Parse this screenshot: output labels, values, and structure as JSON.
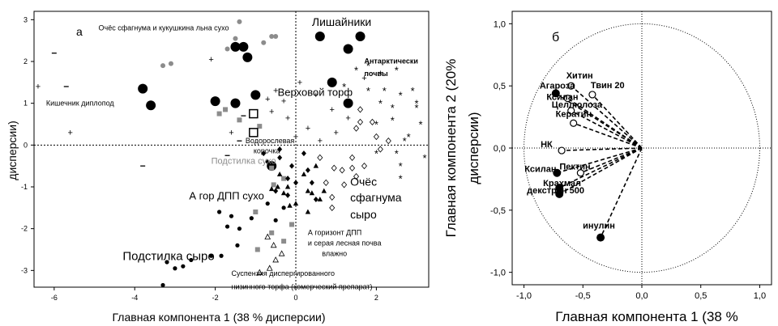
{
  "chart_data": [
    {
      "type": "scatter",
      "panel_label": "а",
      "xlabel": "Главная компонента 1 (38 % дисперсии)",
      "ylabel": "дисперсии)",
      "xlim": [
        -6.5,
        3.3
      ],
      "ylim": [
        -3.4,
        3.2
      ],
      "xticks": [
        -6,
        -4,
        -2,
        0,
        2
      ],
      "yticks": [
        -3,
        -2,
        -1,
        0,
        1,
        2,
        3
      ],
      "ref_lines": {
        "x": 0,
        "y": 0
      },
      "series": [
        {
          "marker": "black-circle-large",
          "points": [
            [
              -3.8,
              1.35
            ],
            [
              -3.6,
              0.95
            ],
            [
              -2.0,
              1.05
            ],
            [
              -1.5,
              1.0
            ],
            [
              -1.5,
              2.35
            ],
            [
              -1.3,
              2.35
            ],
            [
              -1.2,
              2.1
            ],
            [
              -1.0,
              1.2
            ],
            [
              0.6,
              2.6
            ],
            [
              1.6,
              2.6
            ],
            [
              1.3,
              2.3
            ],
            [
              0.9,
              1.5
            ],
            [
              1.3,
              1.0
            ],
            [
              -0.6,
              -0.5
            ]
          ]
        },
        {
          "marker": "grey-circle",
          "points": [
            [
              -3.3,
              1.9
            ],
            [
              -3.1,
              1.95
            ],
            [
              -1.4,
              2.95
            ],
            [
              -1.5,
              2.55
            ],
            [
              -1.7,
              2.3
            ],
            [
              -0.8,
              2.45
            ],
            [
              -0.6,
              2.6
            ],
            [
              -0.5,
              2.6
            ]
          ]
        },
        {
          "marker": "grey-square",
          "points": [
            [
              -1.9,
              0.75
            ],
            [
              -1.75,
              0.85
            ],
            [
              -1.4,
              0.6
            ],
            [
              -0.9,
              0.45
            ],
            [
              -0.6,
              -0.55
            ],
            [
              -0.55,
              -0.95
            ],
            [
              -0.3,
              -0.8
            ],
            [
              -1.0,
              -1.6
            ],
            [
              -0.95,
              -2.5
            ],
            [
              -0.6,
              -2.1
            ],
            [
              -0.3,
              -2.3
            ],
            [
              -0.1,
              -1.9
            ]
          ]
        },
        {
          "marker": "open-square",
          "points": [
            [
              -1.05,
              0.75
            ],
            [
              -1.05,
              0.3
            ]
          ]
        },
        {
          "marker": "black-circle-small",
          "points": [
            [
              -1.9,
              -1.6
            ],
            [
              -1.7,
              -1.95
            ],
            [
              -1.6,
              -1.7
            ],
            [
              -1.4,
              -2.0
            ],
            [
              -1.1,
              -1.75
            ],
            [
              -2.6,
              -2.75
            ],
            [
              -2.1,
              -2.65
            ],
            [
              -1.85,
              -2.65
            ],
            [
              -1.45,
              -2.4
            ],
            [
              -3.2,
              -2.8
            ],
            [
              -3.0,
              -2.95
            ],
            [
              -2.8,
              -2.9
            ],
            [
              -3.3,
              -3.35
            ],
            [
              -0.7,
              -1.4
            ],
            [
              -0.5,
              -1.8
            ],
            [
              -0.3,
              -1.5
            ]
          ]
        },
        {
          "marker": "black-diamond",
          "points": [
            [
              -0.7,
              -0.4
            ],
            [
              -0.4,
              -0.3
            ],
            [
              -0.1,
              -0.5
            ],
            [
              0.2,
              -0.2
            ],
            [
              -0.2,
              -0.8
            ],
            [
              0.0,
              -0.9
            ],
            [
              0.3,
              -0.6
            ],
            [
              0.4,
              -0.9
            ],
            [
              -0.5,
              -1.1
            ],
            [
              -0.2,
              -1.2
            ],
            [
              0.5,
              -1.3
            ],
            [
              -0.8,
              -0.2
            ],
            [
              -0.4,
              -0.1
            ]
          ]
        },
        {
          "marker": "black-triangle",
          "points": [
            [
              -0.6,
              -1.05
            ],
            [
              -0.45,
              -1.0
            ],
            [
              -0.3,
              -1.15
            ],
            [
              -0.2,
              -1.0
            ],
            [
              -0.15,
              -1.45
            ],
            [
              0.0,
              -1.4
            ],
            [
              0.3,
              -1.1
            ],
            [
              0.4,
              -1.15
            ],
            [
              0.6,
              -1.3
            ],
            [
              0.7,
              -1.1
            ],
            [
              -0.4,
              -0.7
            ],
            [
              0.2,
              -0.7
            ],
            [
              0.5,
              -0.5
            ],
            [
              0.3,
              -1.6
            ]
          ]
        },
        {
          "marker": "open-triangle",
          "points": [
            [
              -0.7,
              -2.2
            ],
            [
              -0.55,
              -2.4
            ],
            [
              -0.5,
              -2.75
            ],
            [
              -0.65,
              -2.95
            ],
            [
              -0.9,
              -3.05
            ],
            [
              -0.35,
              -2.6
            ]
          ]
        },
        {
          "marker": "open-diamond",
          "points": [
            [
              1.9,
              0.55
            ],
            [
              1.6,
              0.85
            ],
            [
              1.6,
              0.55
            ],
            [
              2.0,
              0.2
            ],
            [
              1.4,
              -0.3
            ],
            [
              1.4,
              -0.55
            ],
            [
              1.5,
              -0.75
            ],
            [
              1.2,
              -0.95
            ],
            [
              0.9,
              -1.25
            ],
            [
              0.95,
              -0.55
            ],
            [
              0.6,
              -0.3
            ],
            [
              1.15,
              -0.6
            ],
            [
              1.7,
              -0.5
            ],
            [
              2.1,
              -0.1
            ],
            [
              1.5,
              0.4
            ],
            [
              0.9,
              -1.5
            ],
            [
              0.75,
              -0.9
            ],
            [
              2.3,
              0.1
            ]
          ]
        },
        {
          "marker": "asterisk",
          "points": [
            [
              1.5,
              1.8
            ],
            [
              1.8,
              1.9
            ],
            [
              2.1,
              1.7
            ],
            [
              2.5,
              1.8
            ],
            [
              2.2,
              1.3
            ],
            [
              2.6,
              1.2
            ],
            [
              3.0,
              1.0
            ],
            [
              3.1,
              0.5
            ],
            [
              2.8,
              0.2
            ],
            [
              3.2,
              -0.3
            ],
            [
              2.5,
              -0.2
            ],
            [
              2.0,
              -0.2
            ],
            [
              2.6,
              -0.5
            ],
            [
              2.4,
              0.6
            ],
            [
              2.0,
              0.5
            ],
            [
              2.1,
              1.0
            ],
            [
              1.8,
              1.3
            ],
            [
              2.9,
              1.3
            ],
            [
              2.6,
              -0.8
            ],
            [
              3.0,
              0.9
            ],
            [
              1.2,
              1.4
            ],
            [
              2.4,
              0.9
            ],
            [
              2.7,
              0.1
            ]
          ]
        },
        {
          "marker": "plus",
          "points": [
            [
              -6.4,
              1.4
            ],
            [
              -5.6,
              0.3
            ],
            [
              -1.6,
              0.3
            ],
            [
              -0.7,
              1.1
            ],
            [
              -0.5,
              1.3
            ],
            [
              -0.3,
              1.05
            ],
            [
              0.1,
              1.5
            ],
            [
              0.5,
              1.2
            ],
            [
              0.9,
              0.85
            ],
            [
              1.0,
              0.3
            ],
            [
              0.6,
              0.1
            ],
            [
              0.3,
              0.4
            ],
            [
              1.7,
              1.6
            ],
            [
              -0.6,
              0.8
            ],
            [
              -0.2,
              0.65
            ],
            [
              -2.1,
              2.05
            ],
            [
              0.0,
              0.2
            ],
            [
              1.3,
              0.65
            ]
          ]
        },
        {
          "marker": "minus",
          "points": [
            [
              -6.0,
              2.2
            ],
            [
              -5.7,
              1.4
            ],
            [
              -3.8,
              -0.5
            ],
            [
              -1.7,
              -0.25
            ],
            [
              -1.3,
              0.7
            ],
            [
              -1.4,
              0.1
            ]
          ]
        }
      ],
      "annotations": [
        {
          "text": "Очёс сфагнума  и кукушкина льна сухо",
          "x": -4.9,
          "y": 2.75
        },
        {
          "text": "Лишайники",
          "x": 0.4,
          "y": 2.85
        },
        {
          "text": "Антарктически",
          "x": 1.7,
          "y": 1.95
        },
        {
          "text": "почвы",
          "x": 1.7,
          "y": 1.65
        },
        {
          "text": "Верховой торф",
          "x": -0.45,
          "y": 1.18
        },
        {
          "text": "Кишечник диплопод",
          "x": -6.2,
          "y": 0.95
        },
        {
          "text": "Водорослевая",
          "x": -1.25,
          "y": 0.05
        },
        {
          "text": "корочка",
          "x": -1.05,
          "y": -0.2
        },
        {
          "text": "Подстилка сухо",
          "x": -2.1,
          "y": -0.45
        },
        {
          "text": "А гор ДПП сухо",
          "x": -2.65,
          "y": -1.3
        },
        {
          "text": "Очёс",
          "x": 1.35,
          "y": -0.97
        },
        {
          "text": "сфагнума",
          "x": 1.35,
          "y": -1.35
        },
        {
          "text": "сыро",
          "x": 1.35,
          "y": -1.75
        },
        {
          "text": "А горизонт ДПП",
          "x": 0.3,
          "y": -2.15
        },
        {
          "text": "и серая лесная почва",
          "x": 0.3,
          "y": -2.4
        },
        {
          "text": "влажно",
          "x": 0.65,
          "y": -2.65
        },
        {
          "text": "Подстилка сыро",
          "x": -4.3,
          "y": -2.75
        },
        {
          "text": "Суспензия диспергированного",
          "x": -1.6,
          "y": -3.13
        },
        {
          "text": "низинного торфа (комерческий препарат)",
          "x": -1.6,
          "y": -3.45
        }
      ]
    },
    {
      "type": "scatter",
      "panel_label": "б",
      "xlabel": "Главная компонента 1 (38 %",
      "ylabel": "Главная компонента 2 (20%",
      "ylabel2": "дисперсии)",
      "xlim": [
        -1.1,
        1.1
      ],
      "ylim": [
        -1.1,
        1.1
      ],
      "xticks": [
        "-1,0",
        "-0,5",
        "0,0",
        "0,5",
        "1,0"
      ],
      "yticks": [
        "-1,0",
        "-0,5",
        "0,0",
        "0,5",
        "1,0"
      ],
      "circle_radius": 1.0,
      "ref_lines": {
        "x": 0,
        "y": 0
      },
      "loadings": [
        {
          "label": "Агароза",
          "x": -0.73,
          "y": 0.44,
          "filled": true
        },
        {
          "label": "Хитин",
          "x": -0.6,
          "y": 0.5,
          "filled": false
        },
        {
          "label": "Твин 20",
          "x": -0.42,
          "y": 0.43,
          "filled": false
        },
        {
          "label": "Ксилан",
          "x": -0.63,
          "y": 0.4,
          "filled": false
        },
        {
          "label": "Целлюлоза",
          "x": -0.6,
          "y": 0.3,
          "filled": false
        },
        {
          "label": "Кератин",
          "x": -0.58,
          "y": 0.2,
          "filled": false
        },
        {
          "label": "НК",
          "x": -0.68,
          "y": -0.02,
          "filled": false
        },
        {
          "label": "Ксилан",
          "x": -0.72,
          "y": -0.2,
          "filled": true
        },
        {
          "label": "Пектин",
          "x": -0.52,
          "y": -0.2,
          "filled": false
        },
        {
          "label": "Крахмал",
          "x": -0.7,
          "y": -0.32,
          "filled": true
        },
        {
          "label": "декстран 500",
          "x": -0.7,
          "y": -0.37,
          "filled": true
        },
        {
          "label": "инулин",
          "x": -0.35,
          "y": -0.72,
          "filled": true
        }
      ]
    }
  ]
}
